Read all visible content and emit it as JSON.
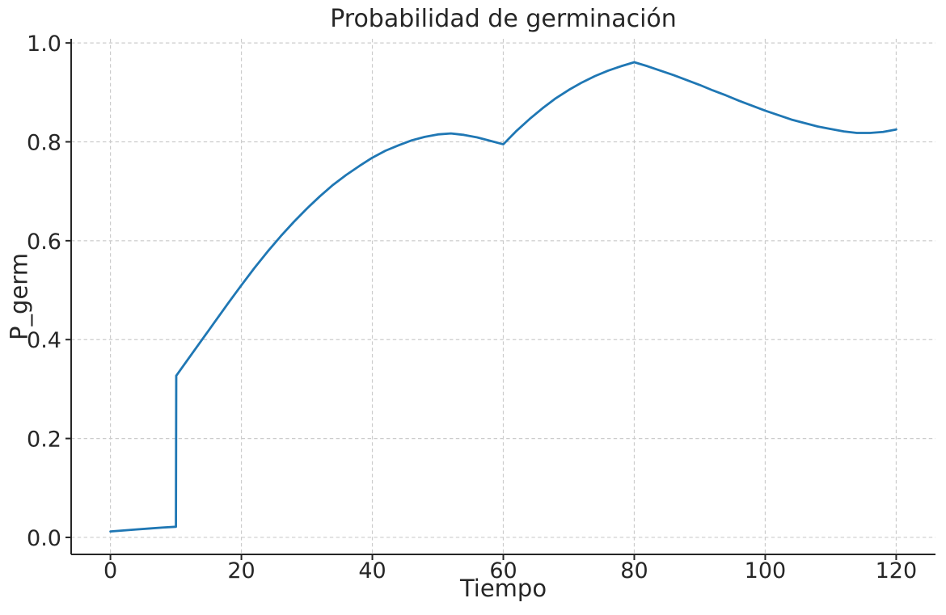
{
  "figure": {
    "background": "#ffffff"
  },
  "colors": {
    "line": "#1f77b4",
    "grid": "#cccccc",
    "spine": "#262626",
    "text": "#262626"
  },
  "chart_data": {
    "type": "line",
    "title": "Probabilidad de germinación",
    "xlabel": "Tiempo",
    "ylabel": "P_germ",
    "x_ticks": [
      0,
      20,
      40,
      60,
      80,
      100,
      120
    ],
    "x_tick_labels": [
      "0",
      "20",
      "40",
      "60",
      "80",
      "100",
      "120"
    ],
    "y_ticks": [
      0.0,
      0.2,
      0.4,
      0.6,
      0.8,
      1.0
    ],
    "y_tick_labels": [
      "0.0",
      "0.2",
      "0.4",
      "0.6",
      "0.8",
      "1.0"
    ],
    "xlim": [
      -6,
      126
    ],
    "ylim": [
      -0.0344,
      1.0084
    ],
    "grid": true,
    "grid_style": "dashed",
    "legend": "none",
    "series": [
      {
        "name": "P_germ",
        "color": "#1f77b4",
        "points": [
          [
            0,
            0.012
          ],
          [
            2,
            0.014
          ],
          [
            4,
            0.016
          ],
          [
            6,
            0.018
          ],
          [
            8,
            0.02
          ],
          [
            10,
            0.0215
          ],
          [
            10.05,
            0.327
          ],
          [
            12,
            0.363
          ],
          [
            14,
            0.4
          ],
          [
            16,
            0.437
          ],
          [
            18,
            0.474
          ],
          [
            20,
            0.51
          ],
          [
            22,
            0.545
          ],
          [
            24,
            0.578
          ],
          [
            26,
            0.609
          ],
          [
            28,
            0.638
          ],
          [
            30,
            0.665
          ],
          [
            32,
            0.69
          ],
          [
            34,
            0.713
          ],
          [
            36,
            0.733
          ],
          [
            38,
            0.751
          ],
          [
            40,
            0.768
          ],
          [
            42,
            0.782
          ],
          [
            44,
            0.793
          ],
          [
            46,
            0.803
          ],
          [
            48,
            0.81
          ],
          [
            50,
            0.815
          ],
          [
            52,
            0.817
          ],
          [
            54,
            0.814
          ],
          [
            56,
            0.809
          ],
          [
            58,
            0.802
          ],
          [
            60,
            0.795
          ],
          [
            62,
            0.822
          ],
          [
            64,
            0.846
          ],
          [
            66,
            0.868
          ],
          [
            68,
            0.888
          ],
          [
            70,
            0.905
          ],
          [
            72,
            0.92
          ],
          [
            74,
            0.933
          ],
          [
            76,
            0.944
          ],
          [
            78,
            0.953
          ],
          [
            80,
            0.961
          ],
          [
            82,
            0.953
          ],
          [
            84,
            0.944
          ],
          [
            86,
            0.935
          ],
          [
            88,
            0.925
          ],
          [
            90,
            0.915
          ],
          [
            92,
            0.904
          ],
          [
            94,
            0.894
          ],
          [
            96,
            0.883
          ],
          [
            98,
            0.873
          ],
          [
            100,
            0.863
          ],
          [
            102,
            0.854
          ],
          [
            104,
            0.845
          ],
          [
            106,
            0.838
          ],
          [
            108,
            0.831
          ],
          [
            110,
            0.826
          ],
          [
            112,
            0.821
          ],
          [
            114,
            0.818
          ],
          [
            116,
            0.818
          ],
          [
            118,
            0.82
          ],
          [
            120,
            0.825
          ]
        ]
      }
    ]
  }
}
